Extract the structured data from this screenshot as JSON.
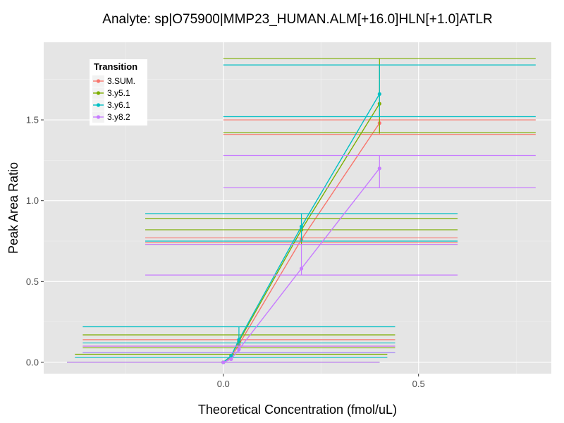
{
  "chart_data": {
    "type": "line",
    "title": "Analyte: sp|O75900|MMP23_HUMAN.ALM[+16.0]HLN[+1.0]ATLR",
    "xlabel": "Theoretical Concentration (fmol/uL)",
    "ylabel": "Peak Area Ratio",
    "xlim": [
      -0.46,
      0.84
    ],
    "ylim": [
      -0.07,
      1.98
    ],
    "x_ticks": [
      0.0,
      0.5
    ],
    "x_tick_labels": [
      "0.0",
      "0.5"
    ],
    "y_ticks": [
      0.0,
      0.5,
      1.0,
      1.5
    ],
    "y_tick_labels": [
      "0.0",
      "0.5",
      "1.0",
      "1.5"
    ],
    "grid": true,
    "legend": {
      "title": "Transition",
      "position": "top-left"
    },
    "series": [
      {
        "name": "3.SUM.",
        "color": "#F8766D",
        "x": [
          0,
          0.02,
          0.04,
          0.2,
          0.4
        ],
        "y": [
          0.0,
          0.03,
          0.11,
          0.76,
          1.48
        ],
        "error": [
          {
            "x": 0.04,
            "lo": 0.1,
            "hi": 0.14
          },
          {
            "x": 0.2,
            "lo": 0.74,
            "hi": 0.77
          },
          {
            "x": 0.4,
            "lo": 1.41,
            "hi": 1.5
          }
        ],
        "hlines": [
          {
            "y": 0.0,
            "x0": -0.4,
            "x1": 0.4
          },
          {
            "y": 0.1,
            "x0": -0.36,
            "x1": 0.44
          },
          {
            "y": 0.14,
            "x0": -0.36,
            "x1": 0.44
          },
          {
            "y": 0.74,
            "x0": -0.2,
            "x1": 0.6
          },
          {
            "y": 0.77,
            "x0": -0.2,
            "x1": 0.6
          },
          {
            "y": 1.41,
            "x0": 0.0,
            "x1": 0.8
          },
          {
            "y": 1.5,
            "x0": 0.0,
            "x1": 0.8
          }
        ]
      },
      {
        "name": "3.y5.1",
        "color": "#7CAE00",
        "x": [
          0,
          0.02,
          0.04,
          0.2,
          0.4
        ],
        "y": [
          0.0,
          0.04,
          0.13,
          0.82,
          1.6
        ],
        "error": [
          {
            "x": 0.04,
            "lo": 0.09,
            "hi": 0.17
          },
          {
            "x": 0.2,
            "lo": 0.73,
            "hi": 0.89
          },
          {
            "x": 0.4,
            "lo": 1.42,
            "hi": 1.88
          }
        ],
        "hlines": [
          {
            "y": 0.0,
            "x0": -0.4,
            "x1": 0.4
          },
          {
            "y": 0.05,
            "x0": -0.38,
            "x1": 0.42
          },
          {
            "y": 0.09,
            "x0": -0.36,
            "x1": 0.44
          },
          {
            "y": 0.17,
            "x0": -0.36,
            "x1": 0.44
          },
          {
            "y": 0.73,
            "x0": -0.2,
            "x1": 0.6
          },
          {
            "y": 0.82,
            "x0": -0.2,
            "x1": 0.6
          },
          {
            "y": 0.89,
            "x0": -0.2,
            "x1": 0.6
          },
          {
            "y": 1.42,
            "x0": 0.0,
            "x1": 0.8
          },
          {
            "y": 1.88,
            "x0": 0.0,
            "x1": 0.8
          }
        ]
      },
      {
        "name": "3.y6.1",
        "color": "#00BFC4",
        "x": [
          0,
          0.02,
          0.04,
          0.2,
          0.4
        ],
        "y": [
          0.0,
          0.04,
          0.14,
          0.84,
          1.66
        ],
        "error": [
          {
            "x": 0.04,
            "lo": 0.06,
            "hi": 0.22
          },
          {
            "x": 0.2,
            "lo": 0.75,
            "hi": 0.92
          },
          {
            "x": 0.4,
            "lo": 1.52,
            "hi": 1.84
          }
        ],
        "hlines": [
          {
            "y": 0.0,
            "x0": -0.4,
            "x1": 0.4
          },
          {
            "y": 0.03,
            "x0": -0.38,
            "x1": 0.42
          },
          {
            "y": 0.06,
            "x0": -0.36,
            "x1": 0.44
          },
          {
            "y": 0.12,
            "x0": -0.36,
            "x1": 0.44
          },
          {
            "y": 0.22,
            "x0": -0.36,
            "x1": 0.44
          },
          {
            "y": 0.75,
            "x0": -0.2,
            "x1": 0.6
          },
          {
            "y": 0.92,
            "x0": -0.2,
            "x1": 0.6
          },
          {
            "y": 1.52,
            "x0": 0.0,
            "x1": 0.8
          },
          {
            "y": 1.84,
            "x0": 0.0,
            "x1": 0.8
          }
        ]
      },
      {
        "name": "3.y8.2",
        "color": "#C77CFF",
        "x": [
          0,
          0.02,
          0.04,
          0.2,
          0.4
        ],
        "y": [
          0.0,
          0.02,
          0.08,
          0.58,
          1.2
        ],
        "error": [
          {
            "x": 0.04,
            "lo": 0.06,
            "hi": 0.1
          },
          {
            "x": 0.2,
            "lo": 0.54,
            "hi": 0.73
          },
          {
            "x": 0.4,
            "lo": 1.08,
            "hi": 1.28
          }
        ],
        "hlines": [
          {
            "y": 0.0,
            "x0": -0.4,
            "x1": 0.4
          },
          {
            "y": 0.06,
            "x0": -0.36,
            "x1": 0.44
          },
          {
            "y": 0.1,
            "x0": -0.36,
            "x1": 0.44
          },
          {
            "y": 0.54,
            "x0": -0.2,
            "x1": 0.6
          },
          {
            "y": 0.73,
            "x0": -0.2,
            "x1": 0.6
          },
          {
            "y": 1.08,
            "x0": 0.0,
            "x1": 0.8
          },
          {
            "y": 1.28,
            "x0": 0.0,
            "x1": 0.8
          }
        ]
      }
    ]
  }
}
